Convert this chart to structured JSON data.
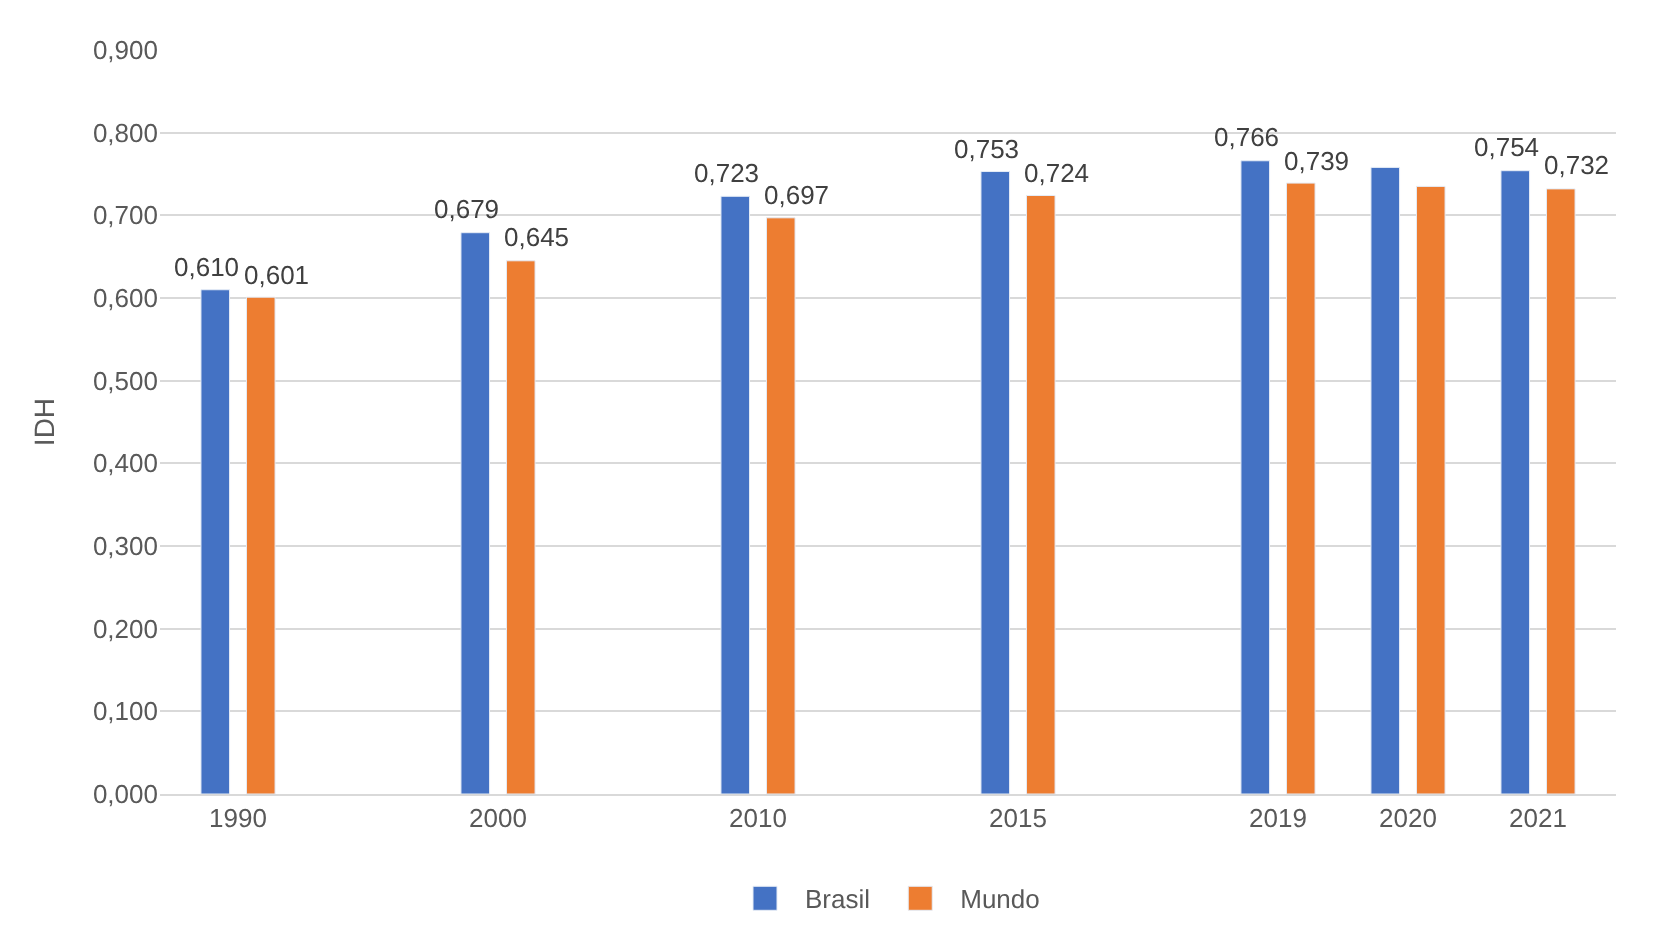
{
  "chart_data": {
    "type": "bar",
    "ylabel": "IDH",
    "categories": [
      "1990",
      null,
      "2000",
      null,
      "2010",
      null,
      "2015",
      null,
      "2019",
      "2020",
      "2021"
    ],
    "series": [
      {
        "name": "Brasil",
        "color": "#4472c4",
        "values": [
          0.61,
          null,
          0.679,
          null,
          0.723,
          null,
          0.753,
          null,
          0.766,
          0.758,
          0.754
        ],
        "value_labels": [
          "0,610",
          null,
          "0,679",
          null,
          "0,723",
          null,
          "0,753",
          null,
          "0,766",
          null,
          "0,754"
        ]
      },
      {
        "name": "Mundo",
        "color": "#ed7d31",
        "values": [
          0.601,
          null,
          0.645,
          null,
          0.697,
          null,
          0.724,
          null,
          0.739,
          0.735,
          0.732
        ],
        "value_labels": [
          "0,601",
          null,
          "0,645",
          null,
          "0,697",
          null,
          "0,724",
          null,
          "0,739",
          null,
          "0,732"
        ]
      }
    ],
    "ylim": [
      0,
      0.9
    ],
    "yticks": [
      {
        "value": 0,
        "label": "0,000"
      },
      {
        "value": 0.1,
        "label": "0,100"
      },
      {
        "value": 0.2,
        "label": "0,200"
      },
      {
        "value": 0.3,
        "label": "0,300"
      },
      {
        "value": 0.4,
        "label": "0,400"
      },
      {
        "value": 0.5,
        "label": "0,500"
      },
      {
        "value": 0.6,
        "label": "0,600"
      },
      {
        "value": 0.7,
        "label": "0,700"
      },
      {
        "value": 0.8,
        "label": "0,800"
      },
      {
        "value": 0.9,
        "label": "0,900"
      }
    ],
    "grid": "y",
    "legend": "bottom"
  }
}
